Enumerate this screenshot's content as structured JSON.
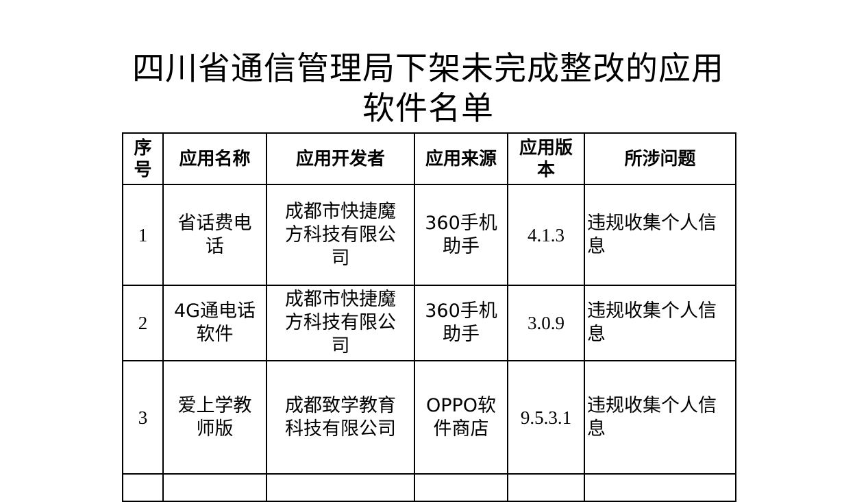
{
  "title": "四川省通信管理局下架未完成整改的应用软件名单",
  "table": {
    "headers": [
      "序号",
      "应用名称",
      "应用开发者",
      "应用来源",
      "应用版本",
      "所涉问题"
    ],
    "rows": [
      {
        "no": "1",
        "name": "省话费电话",
        "developer": "成都市快捷魔方科技有限公司",
        "source": "360手机助手",
        "version": "4.1.3",
        "issue": "违规收集个人信息"
      },
      {
        "no": "2",
        "name": "4G通电话软件",
        "developer": "成都市快捷魔方科技有限公司",
        "source": "360手机助手",
        "version": "3.0.9",
        "issue": "违规收集个人信息"
      },
      {
        "no": "3",
        "name": "爱上学教师版",
        "developer": "成都致学教育科技有限公司",
        "source": "OPPO软件商店",
        "version": "9.5.3.1",
        "issue": "违规收集个人信息"
      }
    ]
  }
}
